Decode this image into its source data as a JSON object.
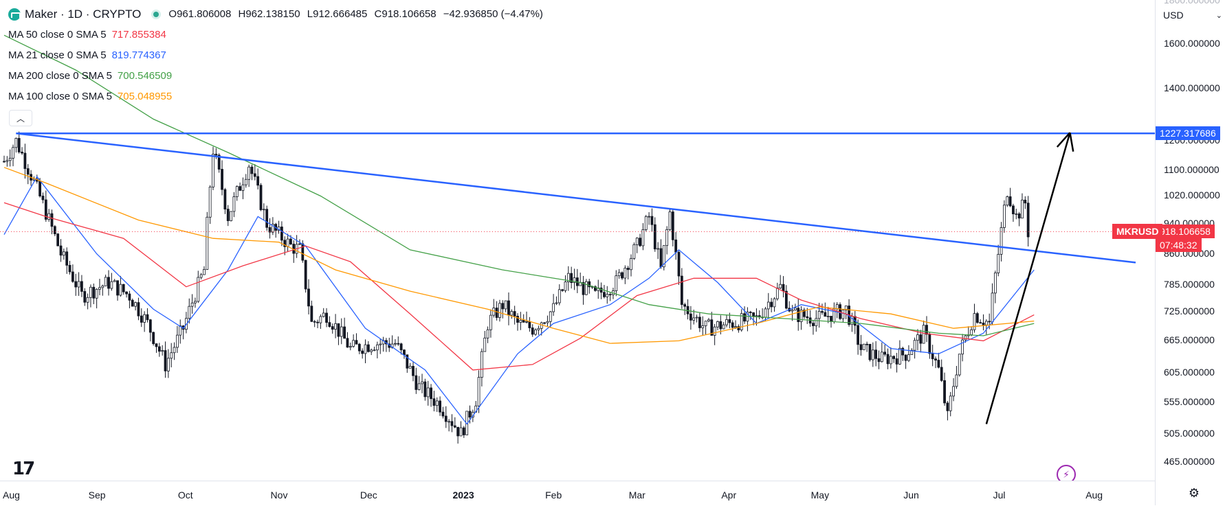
{
  "header": {
    "symbol": "Maker · 1D · CRYPTO",
    "open": "O961.806008",
    "high": "H962.138150",
    "low": "L912.666485",
    "close": "C918.106658",
    "change": "−42.936850 (−4.47%)"
  },
  "indicators": [
    {
      "label": "MA 50 close 0 SMA 5",
      "value": "717.855384",
      "color": "#f23645"
    },
    {
      "label": "MA 21 close 0 SMA 5",
      "value": "819.774367",
      "color": "#2962ff"
    },
    {
      "label": "MA 200 close 0 SMA 5",
      "value": "700.546509",
      "color": "#43a047"
    },
    {
      "label": "MA 100 close 0 SMA 5",
      "value": "705.048955",
      "color": "#ff9800"
    }
  ],
  "price_scale": {
    "currency": "USD",
    "top_cut_label": "1800.000000",
    "ticks": [
      "1600.000000",
      "1400.000000",
      "1200.000000",
      "1100.000000",
      "1020.000000",
      "940.000000",
      "860.000000",
      "785.000000",
      "725.000000",
      "665.000000",
      "605.000000",
      "555.000000",
      "505.000000",
      "465.000000"
    ],
    "horizontal_line_label": "1227.317686",
    "symbol_tag": "MKRUSD",
    "last_price": "918.106658",
    "countdown": "07:48:32"
  },
  "time_scale": {
    "labels": [
      "Aug",
      "Sep",
      "Oct",
      "Nov",
      "Dec",
      "2023",
      "Feb",
      "Mar",
      "Apr",
      "May",
      "Jun",
      "Jul",
      "Aug"
    ]
  },
  "colors": {
    "up": "#089981",
    "down": "#f23645",
    "candle_body": "#131722",
    "trend": "#2962ff",
    "arrow": "#000000"
  },
  "chart_data": {
    "type": "candlestick",
    "symbol": "MKRUSD",
    "interval": "1D",
    "ylim": [
      440,
      1820
    ],
    "yscale": "log",
    "x_range": [
      "2022-08-01",
      "2023-08-15"
    ],
    "horizontal_line": 1227.317686,
    "last_price": 918.106658,
    "trendline": {
      "from": [
        "2022-08-05",
        1227.3
      ],
      "to": [
        "2023-08-15",
        838
      ]
    },
    "arrow": {
      "from": [
        "2023-06-26",
        520
      ],
      "to": [
        "2023-07-24",
        1230
      ]
    },
    "close_keypoints": [
      [
        "2022-08-01",
        1130
      ],
      [
        "2022-08-05",
        1200
      ],
      [
        "2022-08-12",
        1040
      ],
      [
        "2022-08-20",
        860
      ],
      [
        "2022-08-27",
        760
      ],
      [
        "2022-09-05",
        790
      ],
      [
        "2022-09-12",
        760
      ],
      [
        "2022-09-18",
        700
      ],
      [
        "2022-09-24",
        620
      ],
      [
        "2022-09-30",
        690
      ],
      [
        "2022-10-07",
        820
      ],
      [
        "2022-10-10",
        1170
      ],
      [
        "2022-10-15",
        960
      ],
      [
        "2022-10-22",
        1120
      ],
      [
        "2022-10-28",
        940
      ],
      [
        "2022-11-05",
        880
      ],
      [
        "2022-11-08",
        870
      ],
      [
        "2022-11-12",
        700
      ],
      [
        "2022-11-17",
        720
      ],
      [
        "2022-11-25",
        650
      ],
      [
        "2022-12-03",
        660
      ],
      [
        "2022-12-10",
        660
      ],
      [
        "2022-12-18",
        580
      ],
      [
        "2022-12-25",
        550
      ],
      [
        "2023-01-01",
        505
      ],
      [
        "2023-01-06",
        560
      ],
      [
        "2023-01-10",
        700
      ],
      [
        "2023-01-15",
        740
      ],
      [
        "2023-01-20",
        700
      ],
      [
        "2023-01-25",
        690
      ],
      [
        "2023-02-01",
        730
      ],
      [
        "2023-02-06",
        800
      ],
      [
        "2023-02-15",
        760
      ],
      [
        "2023-02-22",
        790
      ],
      [
        "2023-03-01",
        880
      ],
      [
        "2023-03-05",
        960
      ],
      [
        "2023-03-09",
        820
      ],
      [
        "2023-03-12",
        970
      ],
      [
        "2023-03-16",
        740
      ],
      [
        "2023-03-24",
        690
      ],
      [
        "2023-04-01",
        700
      ],
      [
        "2023-04-10",
        710
      ],
      [
        "2023-04-18",
        780
      ],
      [
        "2023-04-22",
        720
      ],
      [
        "2023-05-01",
        710
      ],
      [
        "2023-05-10",
        730
      ],
      [
        "2023-05-15",
        650
      ],
      [
        "2023-05-22",
        630
      ],
      [
        "2023-05-30",
        640
      ],
      [
        "2023-06-05",
        680
      ],
      [
        "2023-06-10",
        610
      ],
      [
        "2023-06-13",
        530
      ],
      [
        "2023-06-17",
        640
      ],
      [
        "2023-06-22",
        720
      ],
      [
        "2023-06-27",
        700
      ],
      [
        "2023-06-30",
        860
      ],
      [
        "2023-07-03",
        1040
      ],
      [
        "2023-07-06",
        960
      ],
      [
        "2023-07-09",
        1000
      ],
      [
        "2023-07-10",
        918
      ]
    ],
    "moving_averages": [
      {
        "name": "MA 21",
        "color": "#2962ff",
        "points": [
          [
            "2022-08-01",
            910
          ],
          [
            "2022-08-12",
            1080
          ],
          [
            "2022-09-01",
            860
          ],
          [
            "2022-09-20",
            730
          ],
          [
            "2022-09-30",
            690
          ],
          [
            "2022-10-15",
            820
          ],
          [
            "2022-10-25",
            960
          ],
          [
            "2022-11-10",
            880
          ],
          [
            "2022-11-30",
            690
          ],
          [
            "2022-12-20",
            610
          ],
          [
            "2023-01-03",
            520
          ],
          [
            "2023-01-20",
            640
          ],
          [
            "2023-02-01",
            700
          ],
          [
            "2023-02-20",
            740
          ],
          [
            "2023-03-05",
            800
          ],
          [
            "2023-03-15",
            870
          ],
          [
            "2023-03-28",
            790
          ],
          [
            "2023-04-10",
            700
          ],
          [
            "2023-04-25",
            740
          ],
          [
            "2023-05-10",
            720
          ],
          [
            "2023-05-25",
            650
          ],
          [
            "2023-06-10",
            640
          ],
          [
            "2023-06-25",
            680
          ],
          [
            "2023-07-12",
            820
          ]
        ]
      },
      {
        "name": "MA 50",
        "color": "#f23645",
        "points": [
          [
            "2022-08-01",
            1000
          ],
          [
            "2022-08-15",
            960
          ],
          [
            "2022-09-10",
            900
          ],
          [
            "2022-10-01",
            780
          ],
          [
            "2022-10-20",
            830
          ],
          [
            "2022-11-10",
            880
          ],
          [
            "2022-11-25",
            840
          ],
          [
            "2022-12-15",
            720
          ],
          [
            "2023-01-05",
            610
          ],
          [
            "2023-01-25",
            620
          ],
          [
            "2023-02-10",
            670
          ],
          [
            "2023-03-01",
            760
          ],
          [
            "2023-03-20",
            800
          ],
          [
            "2023-04-10",
            800
          ],
          [
            "2023-04-25",
            750
          ],
          [
            "2023-05-15",
            710
          ],
          [
            "2023-06-05",
            680
          ],
          [
            "2023-06-25",
            665
          ],
          [
            "2023-07-12",
            718
          ]
        ]
      },
      {
        "name": "MA 100",
        "color": "#ff9800",
        "points": [
          [
            "2022-08-01",
            1110
          ],
          [
            "2022-08-15",
            1060
          ],
          [
            "2022-09-15",
            950
          ],
          [
            "2022-10-10",
            900
          ],
          [
            "2022-11-01",
            890
          ],
          [
            "2022-11-20",
            820
          ],
          [
            "2022-12-15",
            770
          ],
          [
            "2023-01-10",
            730
          ],
          [
            "2023-02-01",
            690
          ],
          [
            "2023-02-20",
            660
          ],
          [
            "2023-03-15",
            665
          ],
          [
            "2023-04-10",
            700
          ],
          [
            "2023-05-01",
            735
          ],
          [
            "2023-05-25",
            720
          ],
          [
            "2023-06-15",
            690
          ],
          [
            "2023-07-12",
            705
          ]
        ]
      },
      {
        "name": "MA 200",
        "color": "#43a047",
        "points": [
          [
            "2022-08-01",
            1640
          ],
          [
            "2022-08-25",
            1480
          ],
          [
            "2022-09-20",
            1280
          ],
          [
            "2022-10-15",
            1160
          ],
          [
            "2022-11-15",
            1020
          ],
          [
            "2022-12-15",
            870
          ],
          [
            "2023-01-15",
            820
          ],
          [
            "2023-02-10",
            790
          ],
          [
            "2023-03-05",
            740
          ],
          [
            "2023-03-25",
            720
          ],
          [
            "2023-04-20",
            710
          ],
          [
            "2023-05-15",
            700
          ],
          [
            "2023-06-10",
            680
          ],
          [
            "2023-06-25",
            675
          ],
          [
            "2023-07-12",
            700
          ]
        ]
      }
    ]
  }
}
